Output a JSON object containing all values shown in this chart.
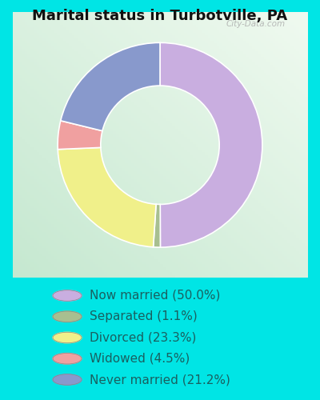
{
  "title": "Marital status in Turbotville, PA",
  "categories": [
    "Now married",
    "Separated",
    "Divorced",
    "Widowed",
    "Never married"
  ],
  "values": [
    50.0,
    1.1,
    23.3,
    4.5,
    21.2
  ],
  "colors": [
    "#c9aee0",
    "#a8bf90",
    "#f0f08a",
    "#f0a0a0",
    "#8899cc"
  ],
  "legend_labels": [
    "Now married (50.0%)",
    "Separated (1.1%)",
    "Divorced (23.3%)",
    "Widowed (4.5%)",
    "Never married (21.2%)"
  ],
  "background_color": "#00e5e5",
  "chart_bg_color": "#d0ecda",
  "title_fontsize": 13,
  "legend_fontsize": 11,
  "legend_text_color": "#1a6060",
  "watermark": "City-Data.com"
}
